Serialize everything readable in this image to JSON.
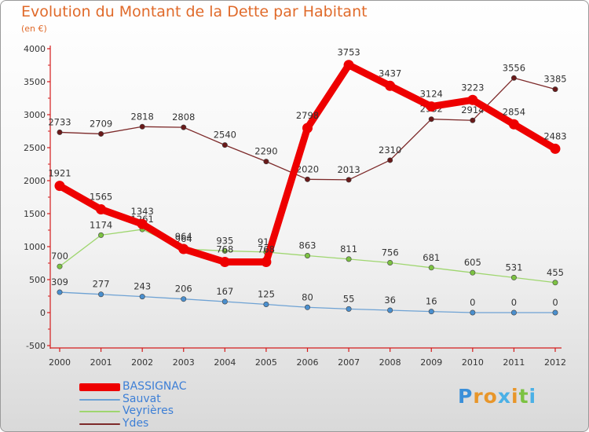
{
  "title": "Evolution du Montant de la Dette par Habitant",
  "subtitle": "(en €)",
  "logo": {
    "text": "Proxiti",
    "letters": [
      "P",
      "r",
      "o",
      "x",
      "i",
      "t",
      "i"
    ],
    "colors": [
      "#3a8fd9",
      "#e8962a",
      "#e8962a",
      "#4ab0e6",
      "#e8962a",
      "#7cc242",
      "#4ab0e6"
    ]
  },
  "chart_data": {
    "type": "line",
    "title": "Evolution du Montant de la Dette par Habitant",
    "subtitle": "(en €)",
    "x": [
      "2000",
      "2001",
      "2002",
      "2003",
      "2004",
      "2005",
      "2006",
      "2007",
      "2008",
      "2009",
      "2010",
      "2011",
      "2012"
    ],
    "ylim": [
      -500,
      4000
    ],
    "yticks": [
      "-500",
      "0",
      "500",
      "1000",
      "1500",
      "2000",
      "2500",
      "3000",
      "3500",
      "4000"
    ],
    "grid": false,
    "legend_position": "bottom-left",
    "series": [
      {
        "name": "Ydes",
        "color": "#7d2a2a",
        "point_color": "#6a1a1a",
        "width": 1.3,
        "r": 3.2,
        "values": [
          2733,
          2709,
          2818,
          2808,
          2540,
          2290,
          2020,
          2013,
          2310,
          2932,
          2914,
          3556,
          3385
        ],
        "labels": [
          "2733",
          "2709",
          "2818",
          "2808",
          "2540",
          "2290",
          "2020",
          "2013",
          "2310",
          "2932",
          "2914",
          "3556",
          "3385"
        ]
      },
      {
        "name": "Veyrières",
        "color": "#9fd66f",
        "point_color": "#7cc242",
        "width": 1.3,
        "r": 3.2,
        "values": [
          700,
          1174,
          1261,
          964,
          935,
          918,
          863,
          811,
          756,
          681,
          605,
          531,
          455
        ],
        "labels": [
          "700",
          "1174",
          "1261",
          "964",
          "935",
          "918",
          "863",
          "811",
          "756",
          "681",
          "605",
          "531",
          "455"
        ]
      },
      {
        "name": "Sauvat",
        "color": "#6ea2d4",
        "point_color": "#4a8fce",
        "width": 1.3,
        "r": 3.2,
        "values": [
          309,
          277,
          243,
          206,
          167,
          125,
          80,
          55,
          36,
          16,
          0,
          0,
          0
        ],
        "labels": [
          "309",
          "277",
          "243",
          "206",
          "167",
          "125",
          "80",
          "55",
          "36",
          "16",
          "0",
          "0",
          "0"
        ]
      },
      {
        "name": "BASSIGNAC",
        "color": "#ee0000",
        "point_color": "#ee0000",
        "width": 9,
        "r": 6.5,
        "values": [
          1921,
          1565,
          1343,
          964,
          768,
          768,
          2798,
          3753,
          3437,
          3124,
          3223,
          2854,
          2483
        ],
        "labels": [
          "1921",
          "1565",
          "1343",
          "964",
          "768",
          "768",
          "2798",
          "3753",
          "3437",
          "3124",
          "3223",
          "2854",
          "2483"
        ]
      }
    ]
  },
  "legend": [
    {
      "name": "BASSIGNAC",
      "color": "#ee0000",
      "thickness": 10
    },
    {
      "name": "Sauvat",
      "color": "#6ea2d4",
      "thickness": 2
    },
    {
      "name": "Veyrières",
      "color": "#9fd66f",
      "thickness": 2
    },
    {
      "name": "Ydes",
      "color": "#7d2a2a",
      "thickness": 2
    }
  ]
}
